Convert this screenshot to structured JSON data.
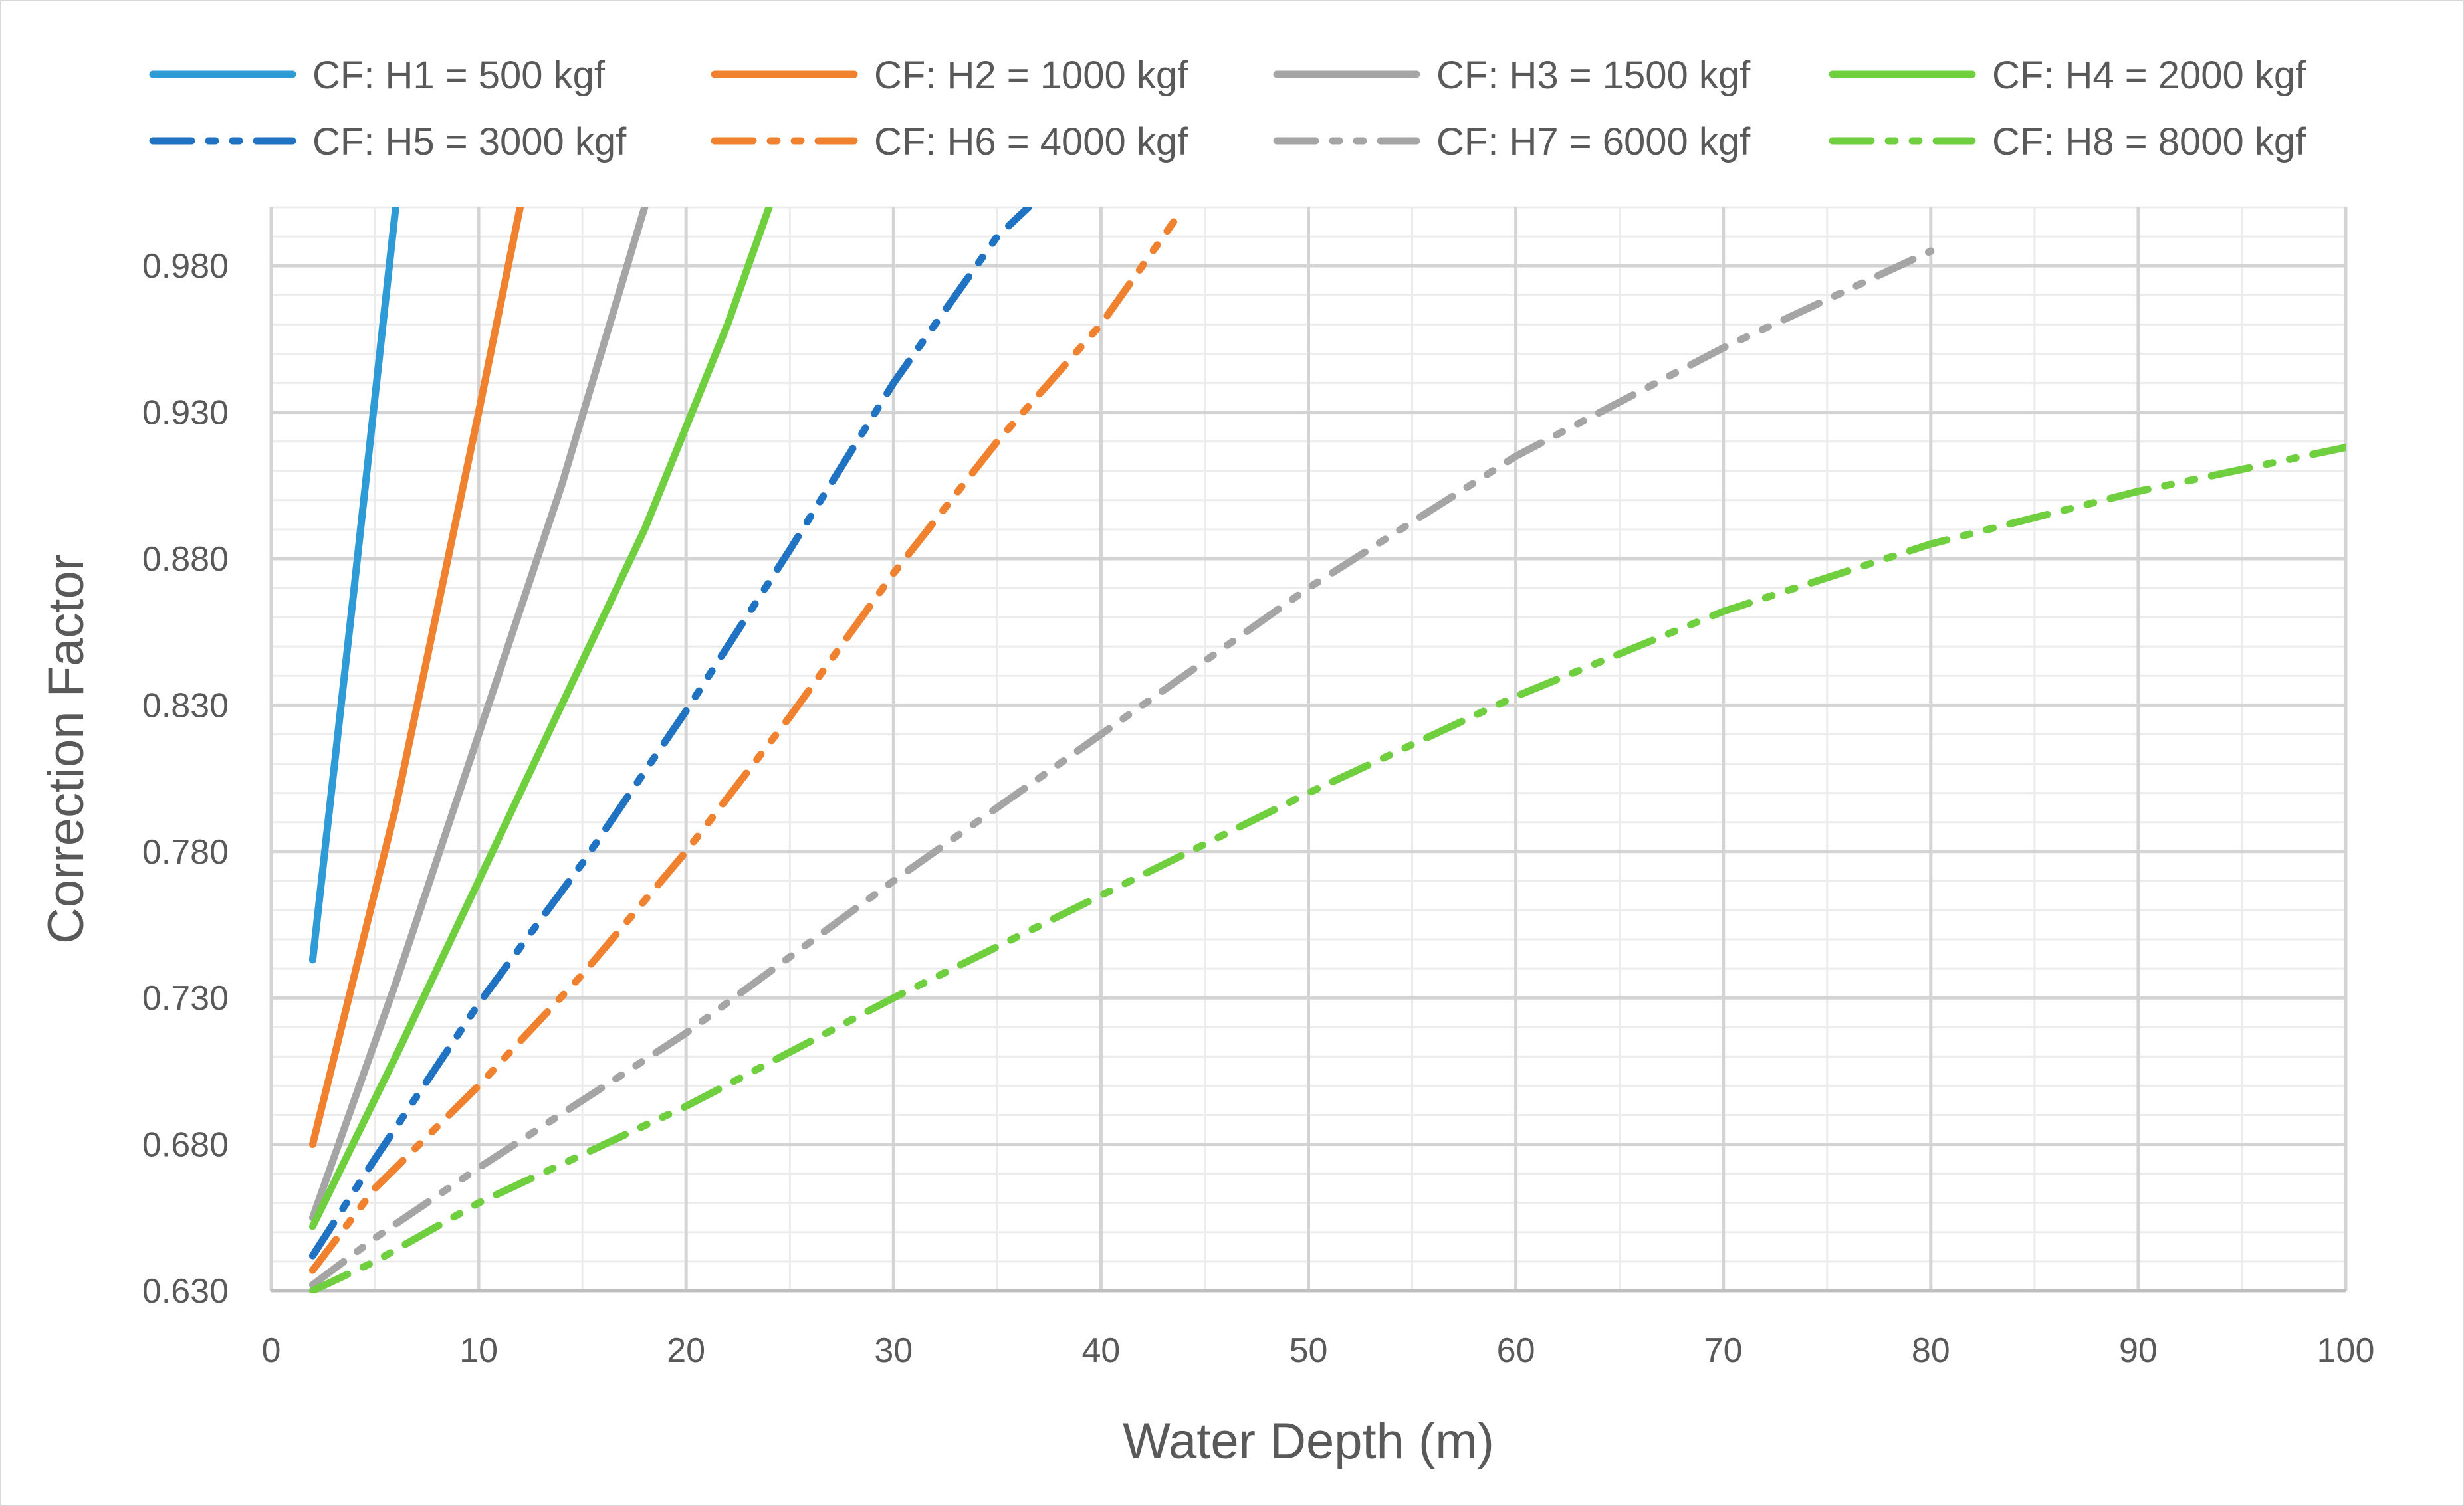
{
  "chart_data": {
    "type": "line",
    "title": "",
    "xlabel": "Water Depth (m)",
    "ylabel": "Correction Factor",
    "xlim": [
      0,
      100
    ],
    "ylim": [
      0.63,
      1.0
    ],
    "grid": true,
    "legend_position": "top",
    "x_ticks": [
      "0",
      "10",
      "20",
      "30",
      "40",
      "50",
      "60",
      "70",
      "80",
      "90",
      "100"
    ],
    "y_ticks": [
      "0.630",
      "0.680",
      "0.730",
      "0.780",
      "0.830",
      "0.880",
      "0.930",
      "0.980"
    ],
    "series": [
      {
        "name": "CF: H1 = 500 kgf",
        "color": "#2e9bd6",
        "style": "solid",
        "x": [
          2,
          4,
          6
        ],
        "y": [
          0.743,
          0.87,
          1.0
        ]
      },
      {
        "name": "CF: H2 = 1000 kgf",
        "color": "#f0812f",
        "style": "solid",
        "x": [
          2,
          6,
          10,
          12
        ],
        "y": [
          0.68,
          0.795,
          0.93,
          1.0
        ]
      },
      {
        "name": "CF: H3 = 1500 kgf",
        "color": "#a5a5a5",
        "style": "solid",
        "x": [
          2,
          6,
          10,
          14,
          18
        ],
        "y": [
          0.655,
          0.735,
          0.82,
          0.905,
          1.0
        ]
      },
      {
        "name": "CF: H4 = 2000 kgf",
        "color": "#6fcf3f",
        "style": "solid",
        "x": [
          2,
          6,
          10,
          14,
          18,
          22,
          24
        ],
        "y": [
          0.652,
          0.71,
          0.77,
          0.83,
          0.89,
          0.96,
          1.0
        ]
      },
      {
        "name": "CF: H5 = 3000 kgf",
        "color": "#1f73c2",
        "style": "dashdot",
        "x": [
          2,
          5,
          10,
          15,
          20,
          25,
          30,
          35,
          36.5
        ],
        "y": [
          0.642,
          0.675,
          0.728,
          0.776,
          0.828,
          0.883,
          0.94,
          0.99,
          1.0
        ]
      },
      {
        "name": "CF: H6 = 4000 kgf",
        "color": "#f0812f",
        "style": "dashdot",
        "x": [
          2,
          5,
          10,
          15,
          20,
          25,
          30,
          35,
          40,
          43.5
        ],
        "y": [
          0.637,
          0.665,
          0.7,
          0.738,
          0.78,
          0.826,
          0.875,
          0.92,
          0.96,
          0.995
        ]
      },
      {
        "name": "CF: H7 = 6000 kgf",
        "color": "#a5a5a5",
        "style": "dashdot",
        "x": [
          2,
          5,
          10,
          20,
          30,
          40,
          50,
          60,
          70,
          80
        ],
        "y": [
          0.632,
          0.648,
          0.672,
          0.718,
          0.77,
          0.82,
          0.87,
          0.915,
          0.952,
          0.985
        ]
      },
      {
        "name": "CF: H8 = 8000 kgf",
        "color": "#6fcf3f",
        "style": "dashdot",
        "x": [
          2,
          5,
          10,
          20,
          30,
          40,
          50,
          60,
          70,
          80,
          90,
          100
        ],
        "y": [
          0.63,
          0.64,
          0.66,
          0.693,
          0.73,
          0.765,
          0.8,
          0.833,
          0.862,
          0.885,
          0.903,
          0.918
        ]
      }
    ]
  }
}
